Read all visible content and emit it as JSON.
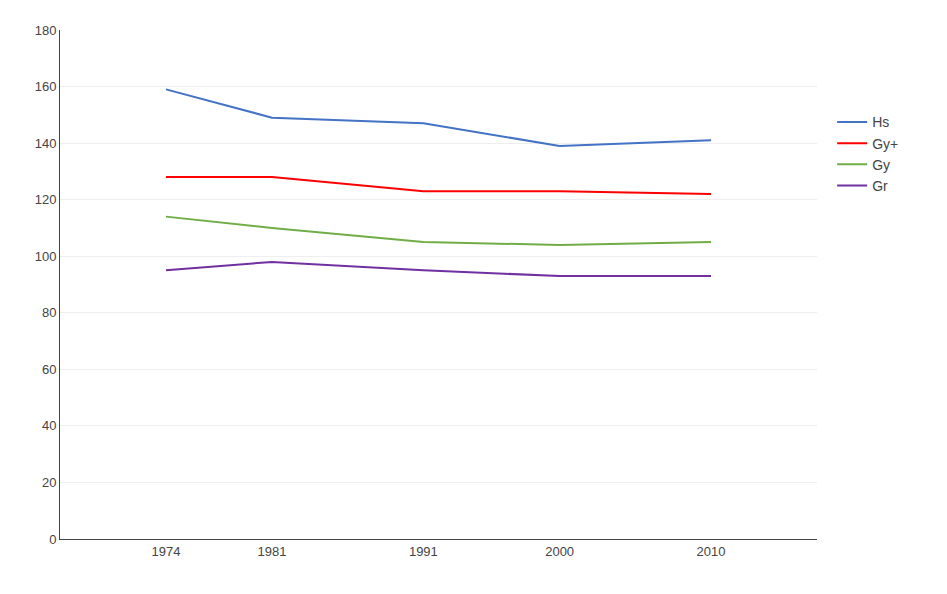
{
  "chart_data": {
    "type": "line",
    "x": [
      1974,
      1981,
      1991,
      2000,
      2010
    ],
    "series": [
      {
        "name": "Hs",
        "color": "#4472C4",
        "values": [
          159,
          149,
          147,
          139,
          141
        ]
      },
      {
        "name": "Gy+",
        "color": "#FF0000",
        "values": [
          128,
          128,
          123,
          123,
          122
        ]
      },
      {
        "name": "Gy",
        "color": "#70AD47",
        "values": [
          114,
          110,
          105,
          104,
          105
        ]
      },
      {
        "name": "Gr",
        "color": "#7030A0",
        "values": [
          95,
          98,
          95,
          93,
          93
        ]
      }
    ],
    "xlim": [
      1967,
      2017
    ],
    "xticks": [
      1974,
      1981,
      1991,
      2000,
      2010
    ],
    "ylim": [
      0,
      180
    ],
    "yticks": [
      0,
      20,
      40,
      60,
      80,
      100,
      120,
      140,
      160,
      180
    ],
    "grid": "y",
    "legend": "right"
  }
}
